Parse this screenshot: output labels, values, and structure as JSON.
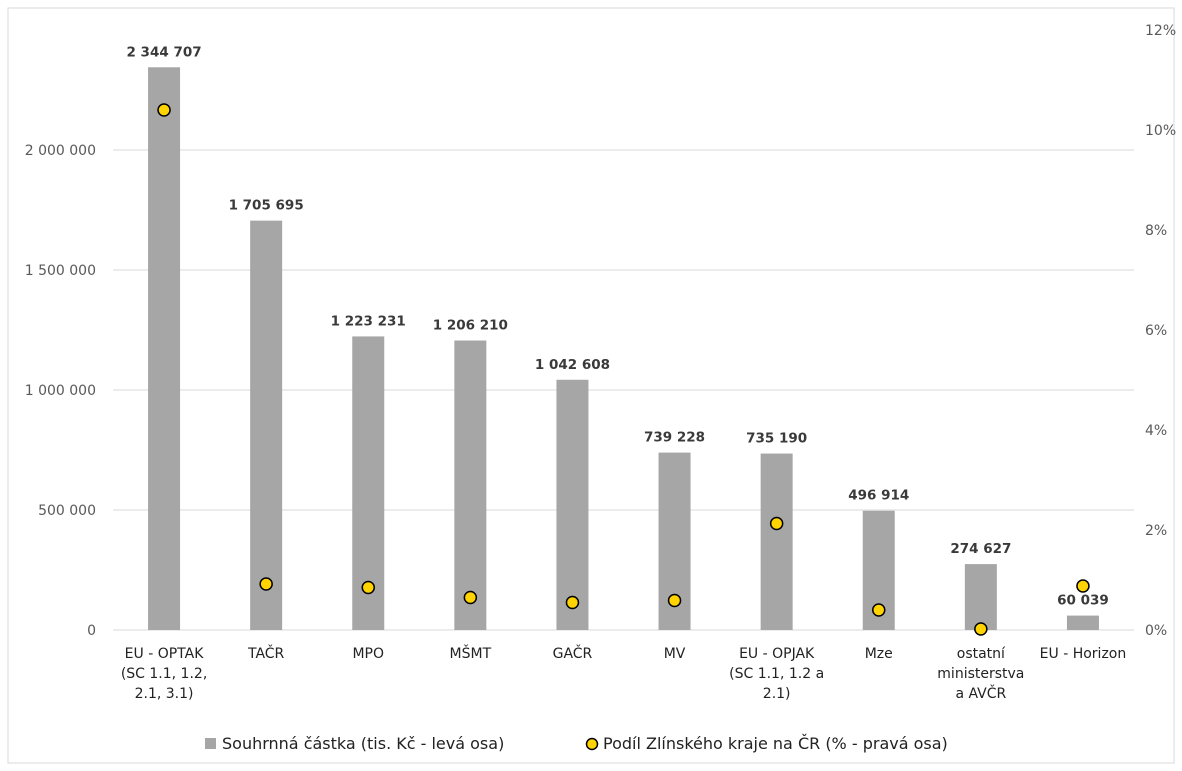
{
  "chart_data": {
    "type": "bar",
    "categories": [
      [
        "EU - OPTAK",
        "(SC 1.1, 1.2,",
        "2.1, 3.1)"
      ],
      [
        "TAČR"
      ],
      [
        "MPO"
      ],
      [
        "MŠMT"
      ],
      [
        "GAČR"
      ],
      [
        "MV"
      ],
      [
        "EU - OPJAK",
        "(SC 1.1, 1.2 a",
        "2.1)"
      ],
      [
        "Mze"
      ],
      [
        "ostatní",
        "ministerstva",
        "a AVČR"
      ],
      [
        "EU - Horizon"
      ]
    ],
    "series": [
      {
        "name": "Souhrnná částka (tis. Kč - levá osa)",
        "type": "bar",
        "axis": "left",
        "values": [
          2344707,
          1705695,
          1223231,
          1206210,
          1042608,
          739228,
          735190,
          496914,
          274627,
          60039
        ],
        "labels": [
          "2 344 707",
          "1 705 695",
          "1 223 231",
          "1 206 210",
          "1 042 608",
          "739 228",
          "735 190",
          "496 914",
          "274 627",
          "60 039"
        ],
        "color": "#a6a6a6"
      },
      {
        "name": "Podíl Zlínského kraje na ČR (% - pravá osa)",
        "type": "scatter",
        "axis": "right",
        "values": [
          10.4,
          0.92,
          0.85,
          0.65,
          0.55,
          0.59,
          2.13,
          0.4,
          0.02,
          0.88
        ],
        "color": "#ffd400",
        "edge_color": "#000000"
      }
    ],
    "y_left": {
      "ylim": [
        0,
        2500000
      ],
      "ticks": [
        0,
        500000,
        1000000,
        1500000,
        2000000
      ],
      "tick_labels": [
        "0",
        "500 000",
        "1 000 000",
        "1 500 000",
        "2 000 000"
      ]
    },
    "y_right": {
      "ylim": [
        0,
        12
      ],
      "ticks": [
        0,
        2,
        4,
        6,
        8,
        10,
        12
      ],
      "tick_labels": [
        "0%",
        "2%",
        "4%",
        "6%",
        "8%",
        "10%",
        "12%"
      ]
    },
    "grid": true,
    "legend": {
      "position": "bottom",
      "entries": [
        "Souhrnná částka (tis. Kč - levá osa)",
        "Podíl Zlínského kraje na ČR (% - pravá osa)"
      ]
    }
  }
}
